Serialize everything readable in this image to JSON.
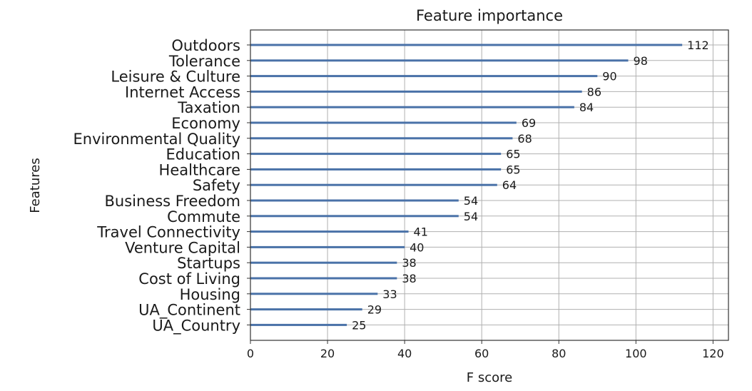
{
  "chart_data": {
    "type": "bar",
    "orientation": "horizontal",
    "title": "Feature importance",
    "xlabel": "F score",
    "ylabel": "Features",
    "xlim": [
      0,
      124
    ],
    "xticks": [
      0,
      20,
      40,
      60,
      80,
      100,
      120
    ],
    "grid": true,
    "categories": [
      "Outdoors",
      "Tolerance",
      "Leisure & Culture",
      "Internet Access",
      "Taxation",
      "Economy",
      "Environmental Quality",
      "Education",
      "Healthcare",
      "Safety",
      "Business Freedom",
      "Commute",
      "Travel Connectivity",
      "Venture Capital",
      "Startups",
      "Cost of Living",
      "Housing",
      "UA_Continent",
      "UA_Country"
    ],
    "values": [
      112,
      98,
      90,
      86,
      84,
      69,
      68,
      65,
      65,
      64,
      54,
      54,
      41,
      40,
      38,
      38,
      33,
      29,
      25
    ],
    "bar_color": "#4a72a8"
  }
}
